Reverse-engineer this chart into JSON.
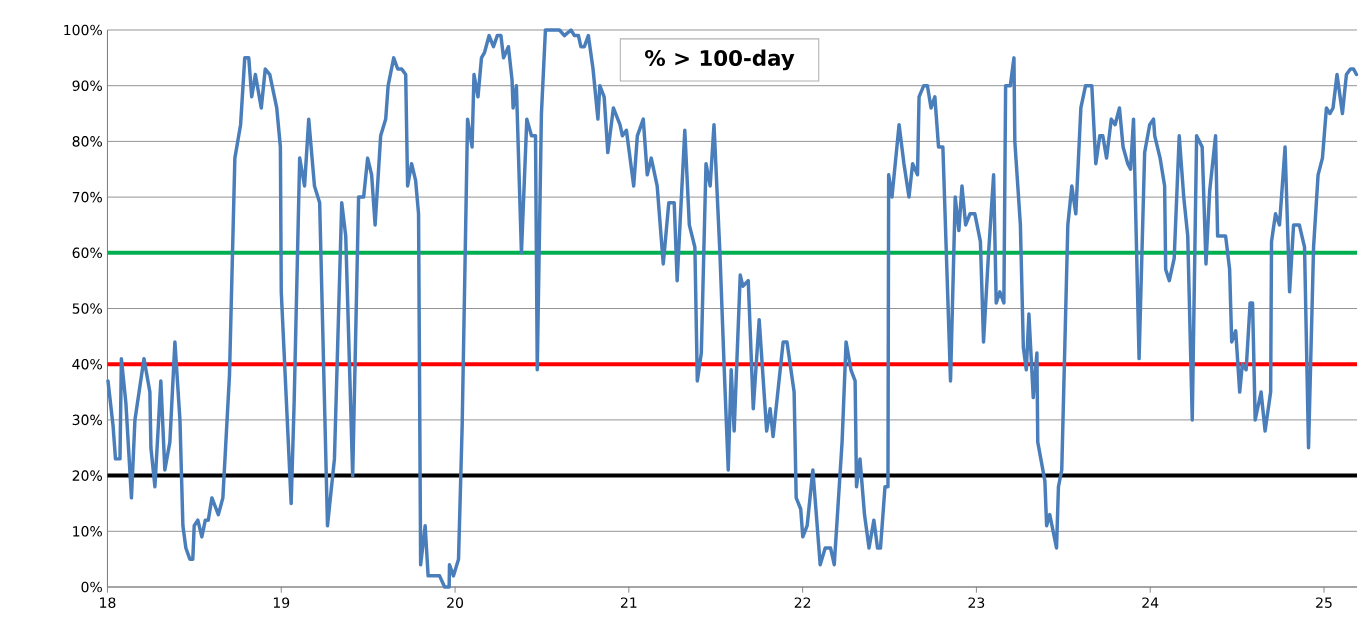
{
  "chart_data": {
    "type": "line",
    "title": "% > 100-day",
    "x": [
      18.003,
      18.032,
      18.046,
      18.072,
      18.08,
      18.106,
      18.138,
      18.158,
      18.21,
      18.244,
      18.25,
      18.273,
      18.307,
      18.33,
      18.359,
      18.388,
      18.417,
      18.434,
      18.451,
      18.474,
      18.491,
      18.499,
      18.52,
      18.543,
      18.563,
      18.58,
      18.601,
      18.638,
      18.664,
      18.702,
      18.733,
      18.766,
      18.79,
      18.813,
      18.83,
      18.851,
      18.885,
      18.908,
      18.934,
      18.974,
      18.995,
      19.0,
      19.057,
      19.074,
      19.106,
      19.134,
      19.158,
      19.191,
      19.221,
      19.266,
      19.306,
      19.348,
      19.371,
      19.411,
      19.445,
      19.474,
      19.497,
      19.52,
      19.54,
      19.572,
      19.601,
      19.615,
      19.647,
      19.67,
      19.693,
      19.716,
      19.727,
      19.75,
      19.773,
      19.79,
      19.802,
      19.828,
      19.845,
      19.911,
      19.94,
      19.966,
      19.968,
      19.991,
      20.02,
      20.041,
      20.072,
      20.098,
      20.109,
      20.132,
      20.152,
      20.17,
      20.196,
      20.221,
      20.243,
      20.264,
      20.279,
      20.307,
      20.328,
      20.334,
      20.353,
      20.382,
      20.413,
      20.44,
      20.463,
      20.473,
      20.497,
      20.52,
      20.541,
      20.601,
      20.629,
      20.667,
      20.687,
      20.71,
      20.724,
      20.744,
      20.767,
      20.794,
      20.822,
      20.833,
      20.858,
      20.879,
      20.911,
      20.949,
      20.963,
      20.986,
      21.028,
      21.049,
      21.083,
      21.106,
      21.129,
      21.163,
      21.198,
      21.23,
      21.261,
      21.278,
      21.322,
      21.348,
      21.38,
      21.394,
      21.417,
      21.444,
      21.468,
      21.49,
      21.524,
      21.549,
      21.572,
      21.589,
      21.606,
      21.641,
      21.656,
      21.687,
      21.716,
      21.75,
      21.793,
      21.813,
      21.83,
      21.888,
      21.91,
      21.951,
      21.963,
      21.989,
      22.001,
      22.026,
      22.059,
      22.101,
      22.13,
      22.161,
      22.182,
      22.227,
      22.25,
      22.278,
      22.302,
      22.31,
      22.33,
      22.356,
      22.382,
      22.41,
      22.431,
      22.448,
      22.474,
      22.491,
      22.495,
      22.514,
      22.555,
      22.583,
      22.612,
      22.633,
      22.661,
      22.67,
      22.697,
      22.718,
      22.739,
      22.761,
      22.782,
      22.807,
      22.851,
      22.878,
      22.899,
      22.917,
      22.938,
      22.963,
      22.991,
      23.023,
      23.041,
      23.068,
      23.099,
      23.114,
      23.135,
      23.158,
      23.168,
      23.195,
      23.216,
      23.221,
      23.253,
      23.27,
      23.287,
      23.302,
      23.327,
      23.348,
      23.353,
      23.394,
      23.404,
      23.422,
      23.461,
      23.472,
      23.491,
      23.526,
      23.549,
      23.572,
      23.601,
      23.628,
      23.664,
      23.687,
      23.71,
      23.727,
      23.749,
      23.776,
      23.798,
      23.823,
      23.844,
      23.871,
      23.887,
      23.904,
      23.936,
      23.968,
      23.997,
      24.019,
      24.026,
      24.057,
      24.083,
      24.089,
      24.11,
      24.138,
      24.167,
      24.193,
      24.216,
      24.242,
      24.267,
      24.299,
      24.321,
      24.342,
      24.376,
      24.388,
      24.434,
      24.457,
      24.469,
      24.492,
      24.515,
      24.53,
      24.552,
      24.575,
      24.589,
      24.604,
      24.638,
      24.661,
      24.693,
      24.698,
      24.721,
      24.744,
      24.776,
      24.802,
      24.825,
      24.858,
      24.888,
      24.911,
      24.94,
      24.966,
      24.991,
      25.014,
      25.034,
      25.052,
      25.075,
      25.106,
      25.129,
      25.152,
      25.17,
      25.187
    ],
    "series": [
      {
        "color": "#4a7ebb",
        "values": [
          37,
          29,
          23,
          23,
          41,
          33,
          16,
          30,
          41,
          35,
          25,
          18,
          37,
          21,
          26,
          44,
          30,
          11,
          7,
          5,
          5,
          11,
          12,
          9,
          12,
          12,
          16,
          13,
          16,
          38,
          77,
          83,
          95,
          95,
          88,
          92,
          86,
          93,
          92,
          86,
          79,
          53,
          15,
          33,
          77,
          72,
          84,
          72,
          69,
          11,
          23,
          69,
          63,
          20,
          70,
          70,
          77,
          74,
          65,
          81,
          84,
          90,
          95,
          93,
          93,
          92,
          72,
          76,
          73,
          67,
          4,
          11,
          2,
          2,
          0,
          0,
          4,
          2,
          5,
          29,
          84,
          79,
          92,
          88,
          95,
          96,
          99,
          97,
          99,
          99,
          95,
          97,
          91,
          86,
          90,
          60,
          84,
          81,
          81,
          39,
          85,
          100,
          100,
          100,
          99,
          100,
          99,
          99,
          97,
          97,
          99,
          93,
          84,
          90,
          88,
          78,
          86,
          83,
          81,
          82,
          72,
          81,
          84,
          74,
          77,
          72,
          58,
          69,
          69,
          55,
          82,
          65,
          61,
          37,
          42,
          76,
          72,
          83,
          60,
          39,
          21,
          39,
          28,
          56,
          54,
          55,
          32,
          48,
          28,
          32,
          27,
          44,
          44,
          35,
          16,
          14,
          9,
          11,
          21,
          4,
          7,
          7,
          4,
          26,
          44,
          39,
          37,
          18,
          23,
          13,
          7,
          12,
          7,
          7,
          18,
          18,
          74,
          70,
          83,
          76,
          70,
          76,
          74,
          88,
          90,
          90,
          86,
          88,
          79,
          79,
          37,
          70,
          64,
          72,
          65,
          67,
          67,
          62,
          44,
          59,
          74,
          51,
          53,
          51,
          90,
          90,
          95,
          80,
          65,
          43,
          39,
          49,
          34,
          42,
          26,
          19,
          11,
          13,
          7,
          18,
          21,
          65,
          72,
          67,
          86,
          90,
          90,
          76,
          81,
          81,
          77,
          84,
          83,
          86,
          79,
          76,
          75,
          84,
          41,
          78,
          83,
          84,
          81,
          77,
          72,
          57,
          55,
          59,
          81,
          70,
          63,
          30,
          81,
          79,
          58,
          71,
          81,
          63,
          63,
          57,
          44,
          46,
          35,
          40,
          39,
          51,
          51,
          30,
          35,
          28,
          35,
          62,
          67,
          65,
          79,
          53,
          65,
          65,
          61,
          25,
          61,
          74,
          77,
          86,
          85,
          86,
          92,
          85,
          92,
          93,
          93,
          92
        ]
      }
    ],
    "xlim": [
      18,
      25.19
    ],
    "ylim": [
      0,
      100
    ],
    "xticks": [
      18,
      19,
      20,
      21,
      22,
      23,
      24,
      25
    ],
    "yticks": [
      {
        "value": 0,
        "label": "0%"
      },
      {
        "value": 10,
        "label": "10%"
      },
      {
        "value": 20,
        "label": "20%"
      },
      {
        "value": 30,
        "label": "30%"
      },
      {
        "value": 40,
        "label": "40%"
      },
      {
        "value": 50,
        "label": "50%"
      },
      {
        "value": 60,
        "label": "60%"
      },
      {
        "value": 70,
        "label": "70%"
      },
      {
        "value": 80,
        "label": "80%"
      },
      {
        "value": 90,
        "label": "90%"
      },
      {
        "value": 100,
        "label": "100%"
      }
    ],
    "ref_lines": [
      {
        "axis": "y",
        "value": 60,
        "color": "#00b050"
      },
      {
        "axis": "y",
        "value": 40,
        "color": "#ff0000"
      },
      {
        "axis": "y",
        "value": 20,
        "color": "#000000"
      }
    ],
    "grid": "y",
    "marker": "none",
    "line_style": "solid"
  }
}
